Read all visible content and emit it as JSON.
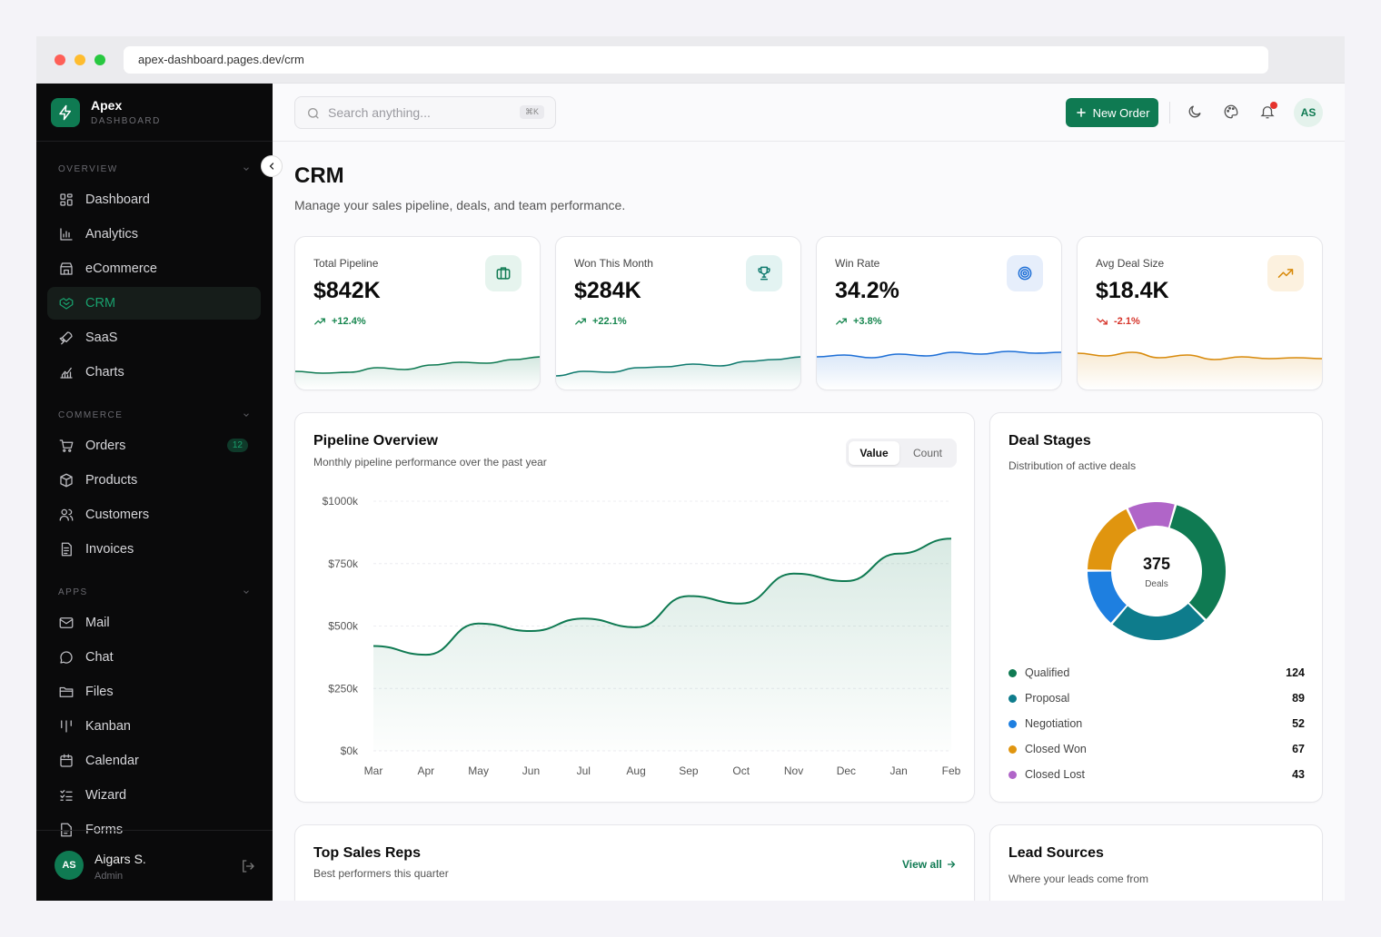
{
  "browser": {
    "url": "apex-dashboard.pages.dev/crm"
  },
  "brand": {
    "name": "Apex",
    "sub": "DASHBOARD"
  },
  "sidebar": {
    "sections": [
      {
        "label": "OVERVIEW",
        "items": [
          {
            "label": "Dashboard",
            "icon": "dashboard-icon"
          },
          {
            "label": "Analytics",
            "icon": "analytics-icon"
          },
          {
            "label": "eCommerce",
            "icon": "store-icon"
          },
          {
            "label": "CRM",
            "icon": "handshake-icon",
            "active": true
          },
          {
            "label": "SaaS",
            "icon": "rocket-icon"
          },
          {
            "label": "Charts",
            "icon": "chart-icon"
          }
        ]
      },
      {
        "label": "COMMERCE",
        "items": [
          {
            "label": "Orders",
            "icon": "cart-icon",
            "badge": "12"
          },
          {
            "label": "Products",
            "icon": "box-icon"
          },
          {
            "label": "Customers",
            "icon": "users-icon"
          },
          {
            "label": "Invoices",
            "icon": "invoice-icon"
          }
        ]
      },
      {
        "label": "APPS",
        "items": [
          {
            "label": "Mail",
            "icon": "mail-icon"
          },
          {
            "label": "Chat",
            "icon": "chat-icon"
          },
          {
            "label": "Files",
            "icon": "folder-icon"
          },
          {
            "label": "Kanban",
            "icon": "kanban-icon"
          },
          {
            "label": "Calendar",
            "icon": "calendar-icon"
          },
          {
            "label": "Wizard",
            "icon": "list-check-icon"
          },
          {
            "label": "Forms",
            "icon": "form-icon"
          }
        ]
      }
    ]
  },
  "user": {
    "initials": "AS",
    "name": "Aigars S.",
    "role": "Admin"
  },
  "topbar": {
    "search_placeholder": "Search anything...",
    "shortcut": "⌘K",
    "new_order": "New Order",
    "avatar": "AS"
  },
  "page": {
    "title": "CRM",
    "subtitle": "Manage your sales pipeline, deals, and team performance."
  },
  "kpis": [
    {
      "label": "Total Pipeline",
      "value": "$842K",
      "delta": "+12.4%",
      "trend": "up",
      "icon": "briefcase-icon",
      "color": "#0f7a52",
      "bg": "#e6f4ee",
      "spark": [
        20,
        18,
        19,
        24,
        22,
        27,
        30,
        29,
        33,
        36
      ]
    },
    {
      "label": "Won This Month",
      "value": "$284K",
      "delta": "+22.1%",
      "trend": "up",
      "icon": "trophy-icon",
      "color": "#0f7a6e",
      "bg": "#e3f3f2",
      "spark": [
        15,
        20,
        19,
        24,
        25,
        28,
        26,
        31,
        33,
        36
      ]
    },
    {
      "label": "Win Rate",
      "value": "34.2%",
      "delta": "+3.8%",
      "trend": "up",
      "icon": "target-icon",
      "color": "#1e6fd6",
      "bg": "#e6eefb",
      "spark": [
        36,
        38,
        35,
        39,
        37,
        41,
        39,
        42,
        40,
        41
      ]
    },
    {
      "label": "Avg Deal Size",
      "value": "$18.4K",
      "delta": "-2.1%",
      "trend": "down",
      "icon": "trend-up-icon",
      "color": "#d88a0b",
      "bg": "#fcf1df",
      "spark": [
        40,
        37,
        41,
        35,
        38,
        33,
        36,
        34,
        35,
        34
      ]
    }
  ],
  "pipeline": {
    "title": "Pipeline Overview",
    "subtitle": "Monthly pipeline performance over the past year",
    "toggle": [
      "Value",
      "Count"
    ],
    "chart_data": {
      "type": "area",
      "x": [
        "Mar",
        "Apr",
        "May",
        "Jun",
        "Jul",
        "Aug",
        "Sep",
        "Oct",
        "Nov",
        "Dec",
        "Jan",
        "Feb"
      ],
      "values": [
        420,
        385,
        510,
        480,
        530,
        495,
        620,
        590,
        710,
        680,
        790,
        850
      ],
      "yticks": [
        "$1000k",
        "$750k",
        "$500k",
        "$250k",
        "$0k"
      ],
      "ylim": [
        0,
        1000
      ],
      "color": "#0f7a52"
    }
  },
  "deals": {
    "title": "Deal Stages",
    "subtitle": "Distribution of active deals",
    "total": "375",
    "total_label": "Deals",
    "chart_data": {
      "type": "pie",
      "categories": [
        "Qualified",
        "Proposal",
        "Negotiation",
        "Closed Won",
        "Closed Lost"
      ],
      "values": [
        124,
        89,
        52,
        67,
        43
      ],
      "colors": [
        "#0f7a52",
        "#0e7c8c",
        "#1e7fe0",
        "#e0950f",
        "#b065c8"
      ]
    }
  },
  "reps": {
    "title": "Top Sales Reps",
    "subtitle": "Best performers this quarter",
    "view_all": "View all"
  },
  "leads": {
    "title": "Lead Sources",
    "subtitle": "Where your leads come from"
  }
}
